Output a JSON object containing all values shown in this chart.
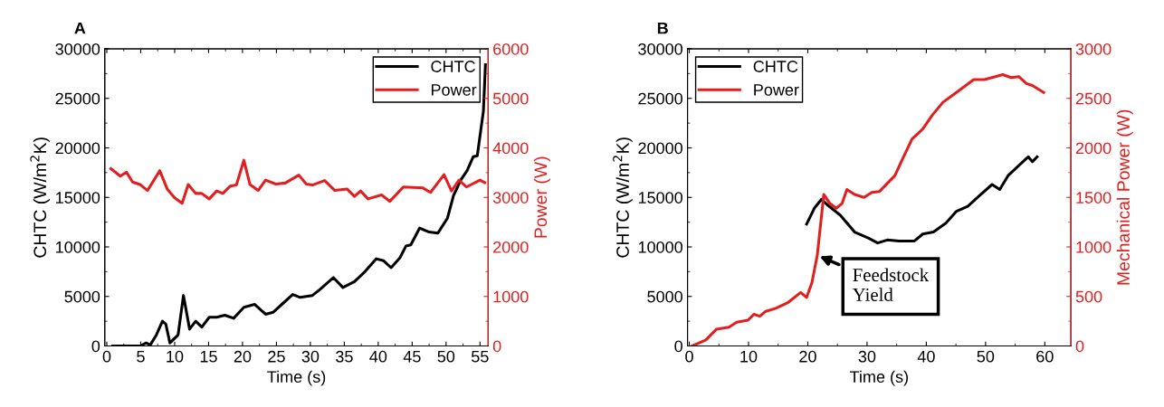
{
  "chart_data": [
    {
      "type": "line",
      "title": "A",
      "xlabel": "Time (s)",
      "ylabel": "CHTC (W/m$^{2}$K)",
      "y2label": "Power (W)",
      "xlim": [
        -0.3,
        56.2
      ],
      "xticks": [
        0,
        5,
        10,
        15,
        20,
        25,
        30,
        35,
        40,
        45,
        50,
        55
      ],
      "ylim": [
        0,
        30000
      ],
      "yticks": [
        0,
        5000,
        10000,
        15000,
        20000,
        25000,
        30000
      ],
      "y2lim": [
        0,
        6000
      ],
      "y2ticks": [
        0,
        1000,
        2000,
        3000,
        4000,
        5000,
        6000
      ],
      "legend": "top right",
      "grid": false,
      "marker": "none",
      "line_style": "solid",
      "series": [
        {
          "name": "CHTC",
          "color": "#000000",
          "x": [
            0.85,
            4.9,
            5.8,
            6.4,
            7.3,
            8.2,
            8.7,
            9.3,
            10.5,
            11.3,
            12.2,
            13.1,
            14,
            15.1,
            16.2,
            17.4,
            18.7,
            20.2,
            21.8,
            23.4,
            24.5,
            25.8,
            27.4,
            28.5,
            30.3,
            31.4,
            33.4,
            34.8,
            36.5,
            37.9,
            39.7,
            40.8,
            41.9,
            43.2,
            44.1,
            44.8,
            46.1,
            47.5,
            48.8,
            50.2,
            51.1,
            52.2,
            53.1,
            54,
            54.6,
            55.5,
            55.8
          ],
          "values": [
            0,
            0,
            300,
            100,
            1100,
            2500,
            2200,
            300,
            1100,
            5100,
            1700,
            2500,
            1900,
            2900,
            2900,
            3100,
            2800,
            3900,
            4200,
            3200,
            3400,
            4200,
            5200,
            4900,
            5100,
            5700,
            6900,
            5900,
            6500,
            7400,
            8800,
            8600,
            7900,
            8900,
            10100,
            10200,
            11900,
            11500,
            11400,
            12900,
            15200,
            16800,
            17700,
            19100,
            19200,
            23700,
            28400
          ]
        },
        {
          "name": "Power",
          "color": "#e31e1e",
          "axis": "y2",
          "x": [
            0.6,
            2,
            2.9,
            3.8,
            4.9,
            6,
            7.8,
            8.9,
            10,
            11.1,
            12,
            13.1,
            14,
            15.1,
            16.2,
            17.1,
            18.2,
            19.1,
            20.2,
            21.1,
            22.3,
            23.4,
            24.9,
            26.3,
            28.3,
            29.4,
            30.3,
            32.1,
            33.6,
            35.4,
            36.5,
            37.4,
            38.5,
            40.5,
            41.7,
            43.7,
            46.6,
            47.7,
            49.7,
            50.8,
            51.9,
            53,
            55,
            55.7
          ],
          "values": [
            3580,
            3430,
            3510,
            3310,
            3260,
            3140,
            3540,
            3170,
            2990,
            2880,
            3260,
            3080,
            3080,
            2970,
            3130,
            3080,
            3230,
            3250,
            3750,
            3260,
            3140,
            3350,
            3270,
            3290,
            3450,
            3270,
            3250,
            3340,
            3140,
            3170,
            3020,
            3130,
            2970,
            3050,
            2920,
            3210,
            3190,
            3100,
            3460,
            3130,
            3350,
            3210,
            3350,
            3300
          ]
        }
      ]
    },
    {
      "type": "line",
      "title": "B",
      "xlabel": "Time (s)",
      "ylabel": "CHTC (W/m$^{2}$K)",
      "y2label": "Mechanical Power (W)",
      "xlim": [
        -0.3,
        64.4
      ],
      "xticks": [
        0,
        10,
        20,
        30,
        40,
        50,
        60
      ],
      "ylim": [
        0,
        30000
      ],
      "yticks": [
        0,
        5000,
        10000,
        15000,
        20000,
        25000,
        30000
      ],
      "y2lim": [
        0,
        3000
      ],
      "y2ticks": [
        0,
        500,
        1000,
        1500,
        2000,
        2500,
        3000
      ],
      "legend": "top left",
      "grid": false,
      "marker": "none",
      "line_style": "solid",
      "annotations": [
        {
          "text": "Feedstock\nYield",
          "x": 21.6,
          "y": 9150
        }
      ],
      "series": [
        {
          "name": "CHTC",
          "color": "#000000",
          "x": [
            19.8,
            21.1,
            22.3,
            23.4,
            25.5,
            27.9,
            30.2,
            31.8,
            33.4,
            35.4,
            38,
            39.4,
            41.2,
            43.3,
            45.1,
            47,
            49,
            51.1,
            52.4,
            53.8,
            55.6,
            57.2,
            57.9,
            58.7
          ],
          "values": [
            12300,
            13900,
            14800,
            14200,
            13200,
            11500,
            10900,
            10400,
            10700,
            10600,
            10600,
            11300,
            11500,
            12400,
            13600,
            14100,
            15200,
            16300,
            15800,
            17200,
            18200,
            19100,
            18600,
            19100
          ]
        },
        {
          "name": "Power",
          "color": "#e31e1e",
          "axis": "y2",
          "x": [
            0.5,
            2.8,
            4.6,
            6.7,
            8,
            9.9,
            10.9,
            11.9,
            12.9,
            14.6,
            16.7,
            18.8,
            19.8,
            20.7,
            21.6,
            22.7,
            23.7,
            24.8,
            25.8,
            26.6,
            27.9,
            29.5,
            30.8,
            32.1,
            33.4,
            34.7,
            36,
            37.6,
            39.4,
            41,
            42.8,
            44.4,
            46.2,
            48,
            49.8,
            51.1,
            52.9,
            54.3,
            55.6,
            56.9,
            57.9,
            59.8
          ],
          "values": [
            0,
            60,
            170,
            190,
            240,
            260,
            320,
            300,
            350,
            380,
            440,
            540,
            490,
            640,
            915,
            1530,
            1440,
            1390,
            1440,
            1580,
            1530,
            1500,
            1550,
            1560,
            1640,
            1720,
            1890,
            2090,
            2190,
            2330,
            2460,
            2530,
            2610,
            2690,
            2690,
            2710,
            2740,
            2710,
            2720,
            2650,
            2630,
            2560
          ]
        }
      ]
    }
  ]
}
